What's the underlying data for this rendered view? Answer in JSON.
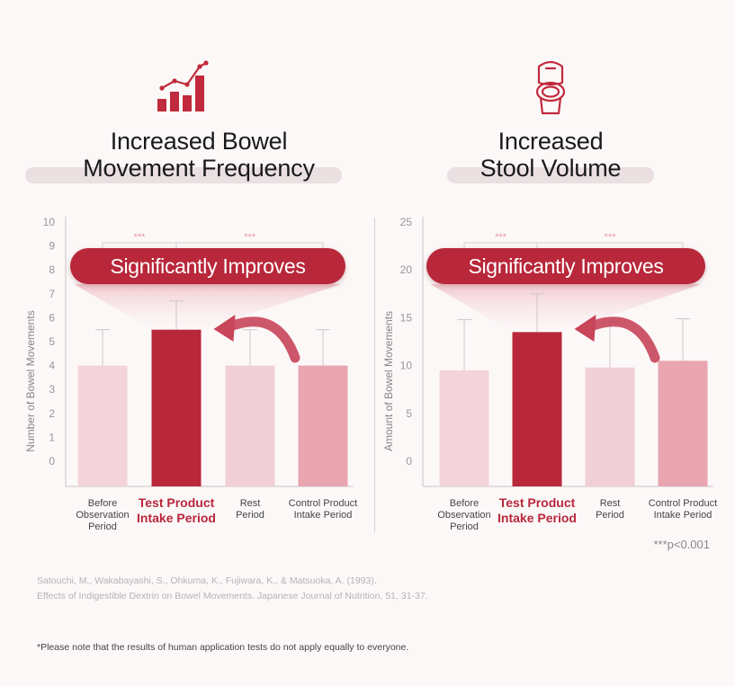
{
  "panels": [
    {
      "icon": "bar-chart-growth-icon",
      "title_line1": "Increased Bowel",
      "title_line2": "Movement Frequency",
      "badge": "Significantly Improves"
    },
    {
      "icon": "toilet-icon",
      "title_line1": "Increased",
      "title_line2": "Stool Volume",
      "badge": "Significantly Improves"
    }
  ],
  "colors": {
    "accent": "#b8273a",
    "bar_light": "#f2d4da",
    "bar_mid": "#e9a5b0",
    "pill_bg": "#eadfe1"
  },
  "chart_data": [
    {
      "type": "bar",
      "categories": [
        "Before Observation Period",
        "Test Product Intake Period",
        "Rest Period",
        "Control Product Intake Period"
      ],
      "values": [
        4.0,
        5.5,
        4.0,
        4.0
      ],
      "error_upper": [
        5.5,
        6.7,
        5.5,
        5.5
      ],
      "ylabel": "Number of Bowel Movements",
      "yticks": [
        0,
        1,
        2,
        3,
        4,
        5,
        6,
        7,
        8,
        9,
        10
      ],
      "ylim": [
        -1,
        10
      ],
      "significance": [
        "***",
        "***"
      ],
      "highlight_index": 1
    },
    {
      "type": "bar",
      "categories": [
        "Before Observation Period",
        "Test Product Intake Period",
        "Rest Period",
        "Control Product Intake Period"
      ],
      "values": [
        9.5,
        13.5,
        9.8,
        10.5
      ],
      "error_upper": [
        14.8,
        17.5,
        14.6,
        14.9
      ],
      "ylabel": "Amount of Bowel Movements",
      "yticks": [
        0,
        5,
        10,
        15,
        20,
        25
      ],
      "ylim": [
        -2.5,
        25
      ],
      "significance": [
        "***",
        "***"
      ],
      "highlight_index": 1
    }
  ],
  "category_lines": [
    [
      "Before",
      "Observation",
      "Period"
    ],
    [
      "Test Product",
      "Intake Period"
    ],
    [
      "Rest",
      "Period"
    ],
    [
      "Control Product",
      "Intake Period"
    ]
  ],
  "p_note": "***p<0.001",
  "reference_line1": "Satouchi, M., Wakabayashi, S., Ohkuma, K., Fujiwara, K., & Matsuoka, A. (1993).",
  "reference_line2": "Effects of Indigestible Dextrin on Bowel Movements. Japanese Journal of Nutrition, 51, 31-37.",
  "disclaimer": "*Please note that the results of human application tests do not apply equally to everyone."
}
